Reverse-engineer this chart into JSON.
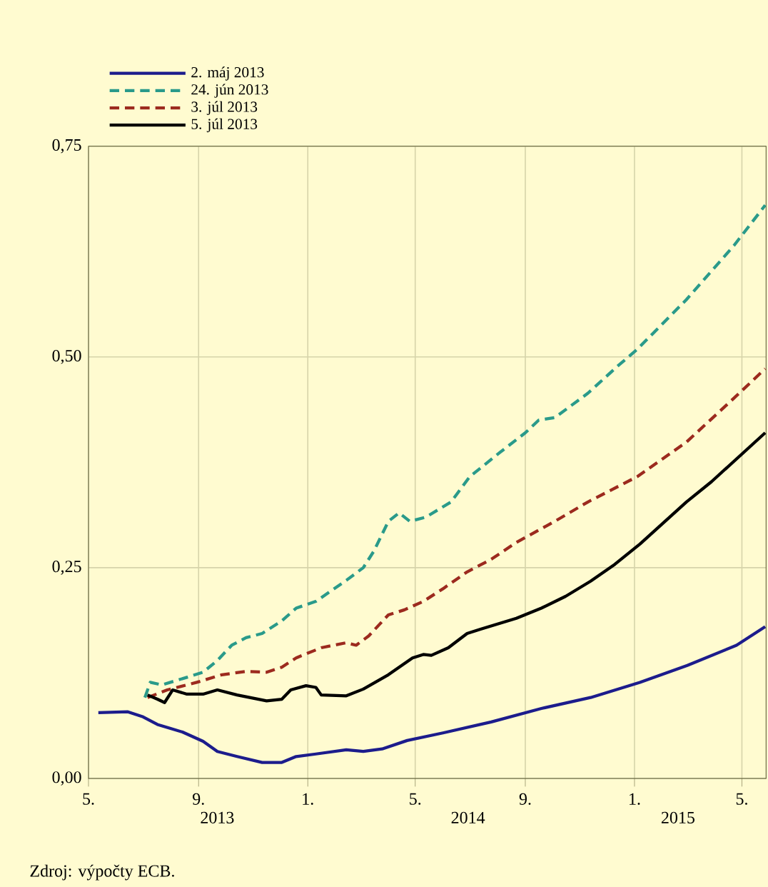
{
  "chart_data": {
    "type": "line",
    "xlim": [
      "2013-05-01",
      "2015-05-28"
    ],
    "xticks": [
      {
        "value": "2013-05-01",
        "label": "5."
      },
      {
        "value": "2013-09-01",
        "label": "9."
      },
      {
        "value": "2014-01-01",
        "label": "1."
      },
      {
        "value": "2014-05-01",
        "label": "5."
      },
      {
        "value": "2014-09-01",
        "label": "9."
      },
      {
        "value": "2015-01-01",
        "label": "1."
      },
      {
        "value": "2015-05-01",
        "label": "5."
      }
    ],
    "ylim": [
      0,
      0.75
    ],
    "yticks": [
      {
        "value": 0,
        "label": "0,00"
      },
      {
        "value": 0.25,
        "label": "0,25"
      },
      {
        "value": 0.5,
        "label": "0,50"
      },
      {
        "value": 0.75,
        "label": "0,75"
      }
    ],
    "grid": true,
    "legend": "top left",
    "marker": "none",
    "annotations": [
      "2013",
      "2014",
      "2015",
      "Zdroj: výpočty ECB."
    ],
    "series": [
      {
        "name": "2. máj 2013",
        "color": "#1c1c8c",
        "line_style": "solid",
        "x": [
          "2013-05-12",
          "2013-06-14",
          "2013-07-01",
          "2013-07-17",
          "2013-08-14",
          "2013-09-06",
          "2013-09-22",
          "2013-10-14",
          "2013-11-11",
          "2013-12-03",
          "2013-12-19",
          "2014-01-10",
          "2014-02-13",
          "2014-03-04",
          "2014-03-25",
          "2014-04-22",
          "2014-06-01",
          "2014-07-25",
          "2014-09-19",
          "2014-11-13",
          "2015-01-07",
          "2015-03-01",
          "2015-04-25",
          "2015-05-27"
        ],
        "values": [
          0.078,
          0.079,
          0.073,
          0.064,
          0.055,
          0.044,
          0.032,
          0.026,
          0.019,
          0.019,
          0.026,
          0.029,
          0.034,
          0.032,
          0.035,
          0.045,
          0.054,
          0.067,
          0.083,
          0.096,
          0.114,
          0.134,
          0.158,
          0.18
        ]
      },
      {
        "name": "24. jún 2013",
        "color": "#2a9a8a",
        "line_style": "dashed",
        "x": [
          "2013-07-03",
          "2013-07-09",
          "2013-07-22",
          "2013-08-19",
          "2013-09-06",
          "2013-09-22",
          "2013-10-08",
          "2013-10-24",
          "2013-11-11",
          "2013-12-03",
          "2013-12-19",
          "2014-01-10",
          "2014-02-13",
          "2014-03-04",
          "2014-03-16",
          "2014-04-01",
          "2014-04-13",
          "2014-04-25",
          "2014-05-13",
          "2014-06-10",
          "2014-07-01",
          "2014-08-04",
          "2014-09-01",
          "2014-09-16",
          "2014-10-04",
          "2014-11-10",
          "2014-12-13",
          "2015-01-04",
          "2015-02-28",
          "2015-04-22",
          "2015-05-27"
        ],
        "values": [
          0.096,
          0.114,
          0.111,
          0.12,
          0.126,
          0.14,
          0.158,
          0.167,
          0.172,
          0.187,
          0.202,
          0.21,
          0.235,
          0.25,
          0.27,
          0.305,
          0.315,
          0.305,
          0.31,
          0.328,
          0.358,
          0.387,
          0.41,
          0.425,
          0.428,
          0.457,
          0.489,
          0.509,
          0.568,
          0.632,
          0.68
        ]
      },
      {
        "name": "3. júl 2013",
        "color": "#9c2a1e",
        "line_style": "dashed",
        "x": [
          "2013-07-06",
          "2013-07-28",
          "2013-08-30",
          "2013-09-27",
          "2013-10-24",
          "2013-11-16",
          "2013-12-03",
          "2013-12-19",
          "2014-01-16",
          "2014-02-13",
          "2014-02-24",
          "2014-03-10",
          "2014-04-01",
          "2014-04-19",
          "2014-05-10",
          "2014-06-01",
          "2014-06-28",
          "2014-07-25",
          "2014-08-22",
          "2014-10-04",
          "2014-11-10",
          "2015-01-04",
          "2015-02-28",
          "2015-04-22",
          "2015-05-27"
        ],
        "values": [
          0.096,
          0.105,
          0.114,
          0.123,
          0.127,
          0.126,
          0.132,
          0.143,
          0.155,
          0.161,
          0.158,
          0.169,
          0.194,
          0.2,
          0.21,
          0.225,
          0.245,
          0.26,
          0.28,
          0.305,
          0.328,
          0.358,
          0.399,
          0.451,
          0.486
        ]
      },
      {
        "name": "5. júl 2013",
        "color": "#000000",
        "line_style": "solid",
        "x": [
          "2013-07-06",
          "2013-07-17",
          "2013-07-25",
          "2013-08-03",
          "2013-08-19",
          "2013-09-06",
          "2013-09-22",
          "2013-10-14",
          "2013-11-16",
          "2013-12-03",
          "2013-12-13",
          "2013-12-30",
          "2014-01-10",
          "2014-01-16",
          "2014-02-13",
          "2014-03-04",
          "2014-04-01",
          "2014-04-28",
          "2014-05-10",
          "2014-05-19",
          "2014-06-07",
          "2014-06-28",
          "2014-07-13",
          "2014-08-22",
          "2014-09-19",
          "2014-10-16",
          "2014-11-13",
          "2014-12-10",
          "2015-01-07",
          "2015-02-28",
          "2015-03-28",
          "2015-05-27"
        ],
        "values": [
          0.099,
          0.094,
          0.09,
          0.105,
          0.1,
          0.1,
          0.105,
          0.099,
          0.092,
          0.094,
          0.105,
          0.11,
          0.108,
          0.099,
          0.098,
          0.106,
          0.123,
          0.143,
          0.147,
          0.146,
          0.155,
          0.172,
          0.177,
          0.19,
          0.202,
          0.216,
          0.234,
          0.254,
          0.278,
          0.328,
          0.352,
          0.41
        ]
      }
    ]
  }
}
